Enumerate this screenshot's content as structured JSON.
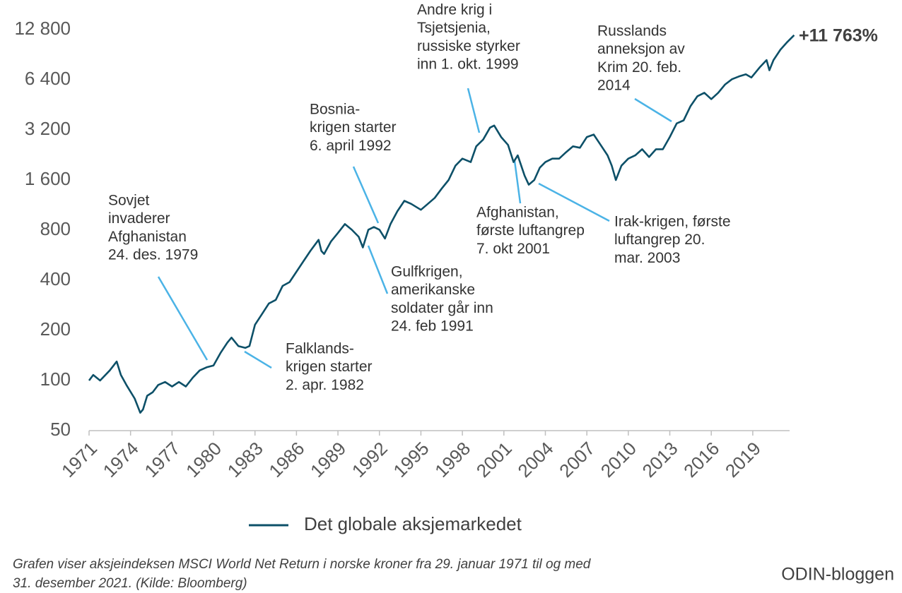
{
  "chart_data": {
    "type": "line",
    "log_scale": true,
    "x": [
      1971.0,
      1971.3,
      1971.8,
      1972.5,
      1973.0,
      1973.3,
      1973.7,
      1974.3,
      1974.7,
      1974.9,
      1975.2,
      1975.6,
      1976.0,
      1976.5,
      1977.0,
      1977.5,
      1978.0,
      1978.5,
      1979.0,
      1979.5,
      1980.0,
      1980.5,
      1981.0,
      1981.3,
      1981.8,
      1982.3,
      1982.6,
      1983.0,
      1983.5,
      1984.0,
      1984.5,
      1985.0,
      1985.5,
      1986.0,
      1986.5,
      1987.0,
      1987.6,
      1987.8,
      1988.0,
      1988.5,
      1989.0,
      1989.5,
      1990.0,
      1990.5,
      1990.8,
      1991.2,
      1991.6,
      1992.0,
      1992.4,
      1992.8,
      1993.3,
      1993.8,
      1994.3,
      1995.0,
      1995.5,
      1996.0,
      1996.5,
      1997.0,
      1997.5,
      1998.0,
      1998.6,
      1999.0,
      1999.5,
      2000.0,
      2000.3,
      2000.8,
      2001.3,
      2001.7,
      2002.0,
      2002.5,
      2002.8,
      2003.2,
      2003.6,
      2004.0,
      2004.5,
      2005.0,
      2005.5,
      2006.0,
      2006.5,
      2007.0,
      2007.5,
      2008.0,
      2008.5,
      2008.8,
      2009.1,
      2009.5,
      2010.0,
      2010.5,
      2011.0,
      2011.5,
      2012.0,
      2012.5,
      2013.0,
      2013.5,
      2014.0,
      2014.5,
      2015.0,
      2015.5,
      2016.0,
      2016.5,
      2017.0,
      2017.5,
      2018.0,
      2018.5,
      2018.9,
      2019.5,
      2020.0,
      2020.2,
      2020.5,
      2021.0,
      2021.5,
      2021.99
    ],
    "series": [
      {
        "name": "Det globale aksjemarkedet",
        "color": "#0d5068",
        "values": [
          100,
          108,
          100,
          115,
          130,
          108,
          94,
          78,
          64,
          67,
          81,
          85,
          94,
          98,
          92,
          98,
          92,
          104,
          115,
          120,
          123,
          146,
          169,
          181,
          161,
          157,
          161,
          216,
          250,
          290,
          305,
          370,
          390,
          450,
          520,
          600,
          700,
          600,
          575,
          685,
          770,
          870,
          805,
          730,
          630,
          805,
          835,
          805,
          712,
          870,
          1040,
          1200,
          1150,
          1060,
          1150,
          1250,
          1420,
          1600,
          1950,
          2150,
          2050,
          2550,
          2800,
          3300,
          3400,
          2900,
          2600,
          2050,
          2250,
          1700,
          1500,
          1600,
          1900,
          2050,
          2150,
          2150,
          2350,
          2550,
          2500,
          2900,
          3000,
          2600,
          2250,
          1950,
          1600,
          1950,
          2150,
          2250,
          2450,
          2200,
          2450,
          2450,
          2900,
          3500,
          3650,
          4450,
          5100,
          5350,
          4900,
          5350,
          6000,
          6450,
          6700,
          6900,
          6600,
          7600,
          8400,
          7300,
          8400,
          9700,
          10800,
          11863
        ]
      }
    ],
    "xlim": [
      1971,
      2022
    ],
    "xticks": [
      1971,
      1974,
      1977,
      1980,
      1983,
      1986,
      1989,
      1992,
      1995,
      1998,
      2001,
      2004,
      2007,
      2010,
      2013,
      2016,
      2019
    ],
    "ylim": [
      50,
      12800
    ],
    "yticks": [
      50,
      100,
      200,
      400,
      {
        "value": 800,
        "label": "800"
      },
      {
        "value": 1600,
        "label": "1 600"
      },
      {
        "value": 3200,
        "label": "3 200"
      },
      {
        "value": 6400,
        "label": "6 400"
      },
      {
        "value": 12800,
        "label": "12 800"
      }
    ],
    "end_label": "+11 763%",
    "annotations": [
      {
        "lines": [
          "Sovjet",
          "invaderer",
          "Afghanistan",
          "24. des. 1979"
        ]
      },
      {
        "lines": [
          "Falklands-",
          "krigen starter",
          "2. apr. 1982"
        ]
      },
      {
        "lines": [
          "Bosnia-",
          "krigen starter",
          "6. april 1992"
        ]
      },
      {
        "lines": [
          "Gulfkrigen,",
          "amerikanske",
          "soldater går inn",
          "24. feb 1991"
        ]
      },
      {
        "lines": [
          "Andre krig i",
          "Tsjetsjenia,",
          "russiske styrker",
          "inn 1. okt. 1999"
        ]
      },
      {
        "lines": [
          "Afghanistan,",
          "første luftangrep",
          "7. okt 2001"
        ]
      },
      {
        "lines": [
          "Irak-krigen, første",
          "luftangrep 20.",
          "mar. 2003"
        ]
      },
      {
        "lines": [
          "Russlands",
          "anneksjon av",
          "Krim 20. feb.",
          "2014"
        ]
      }
    ],
    "footnote": [
      "Grafen viser aksjeindeksen MSCI World Net Return i norske kroner fra 29. januar 1971 til og med",
      "31. desember 2021. (Kilde: Bloomberg)"
    ],
    "source": "ODIN-bloggen"
  }
}
